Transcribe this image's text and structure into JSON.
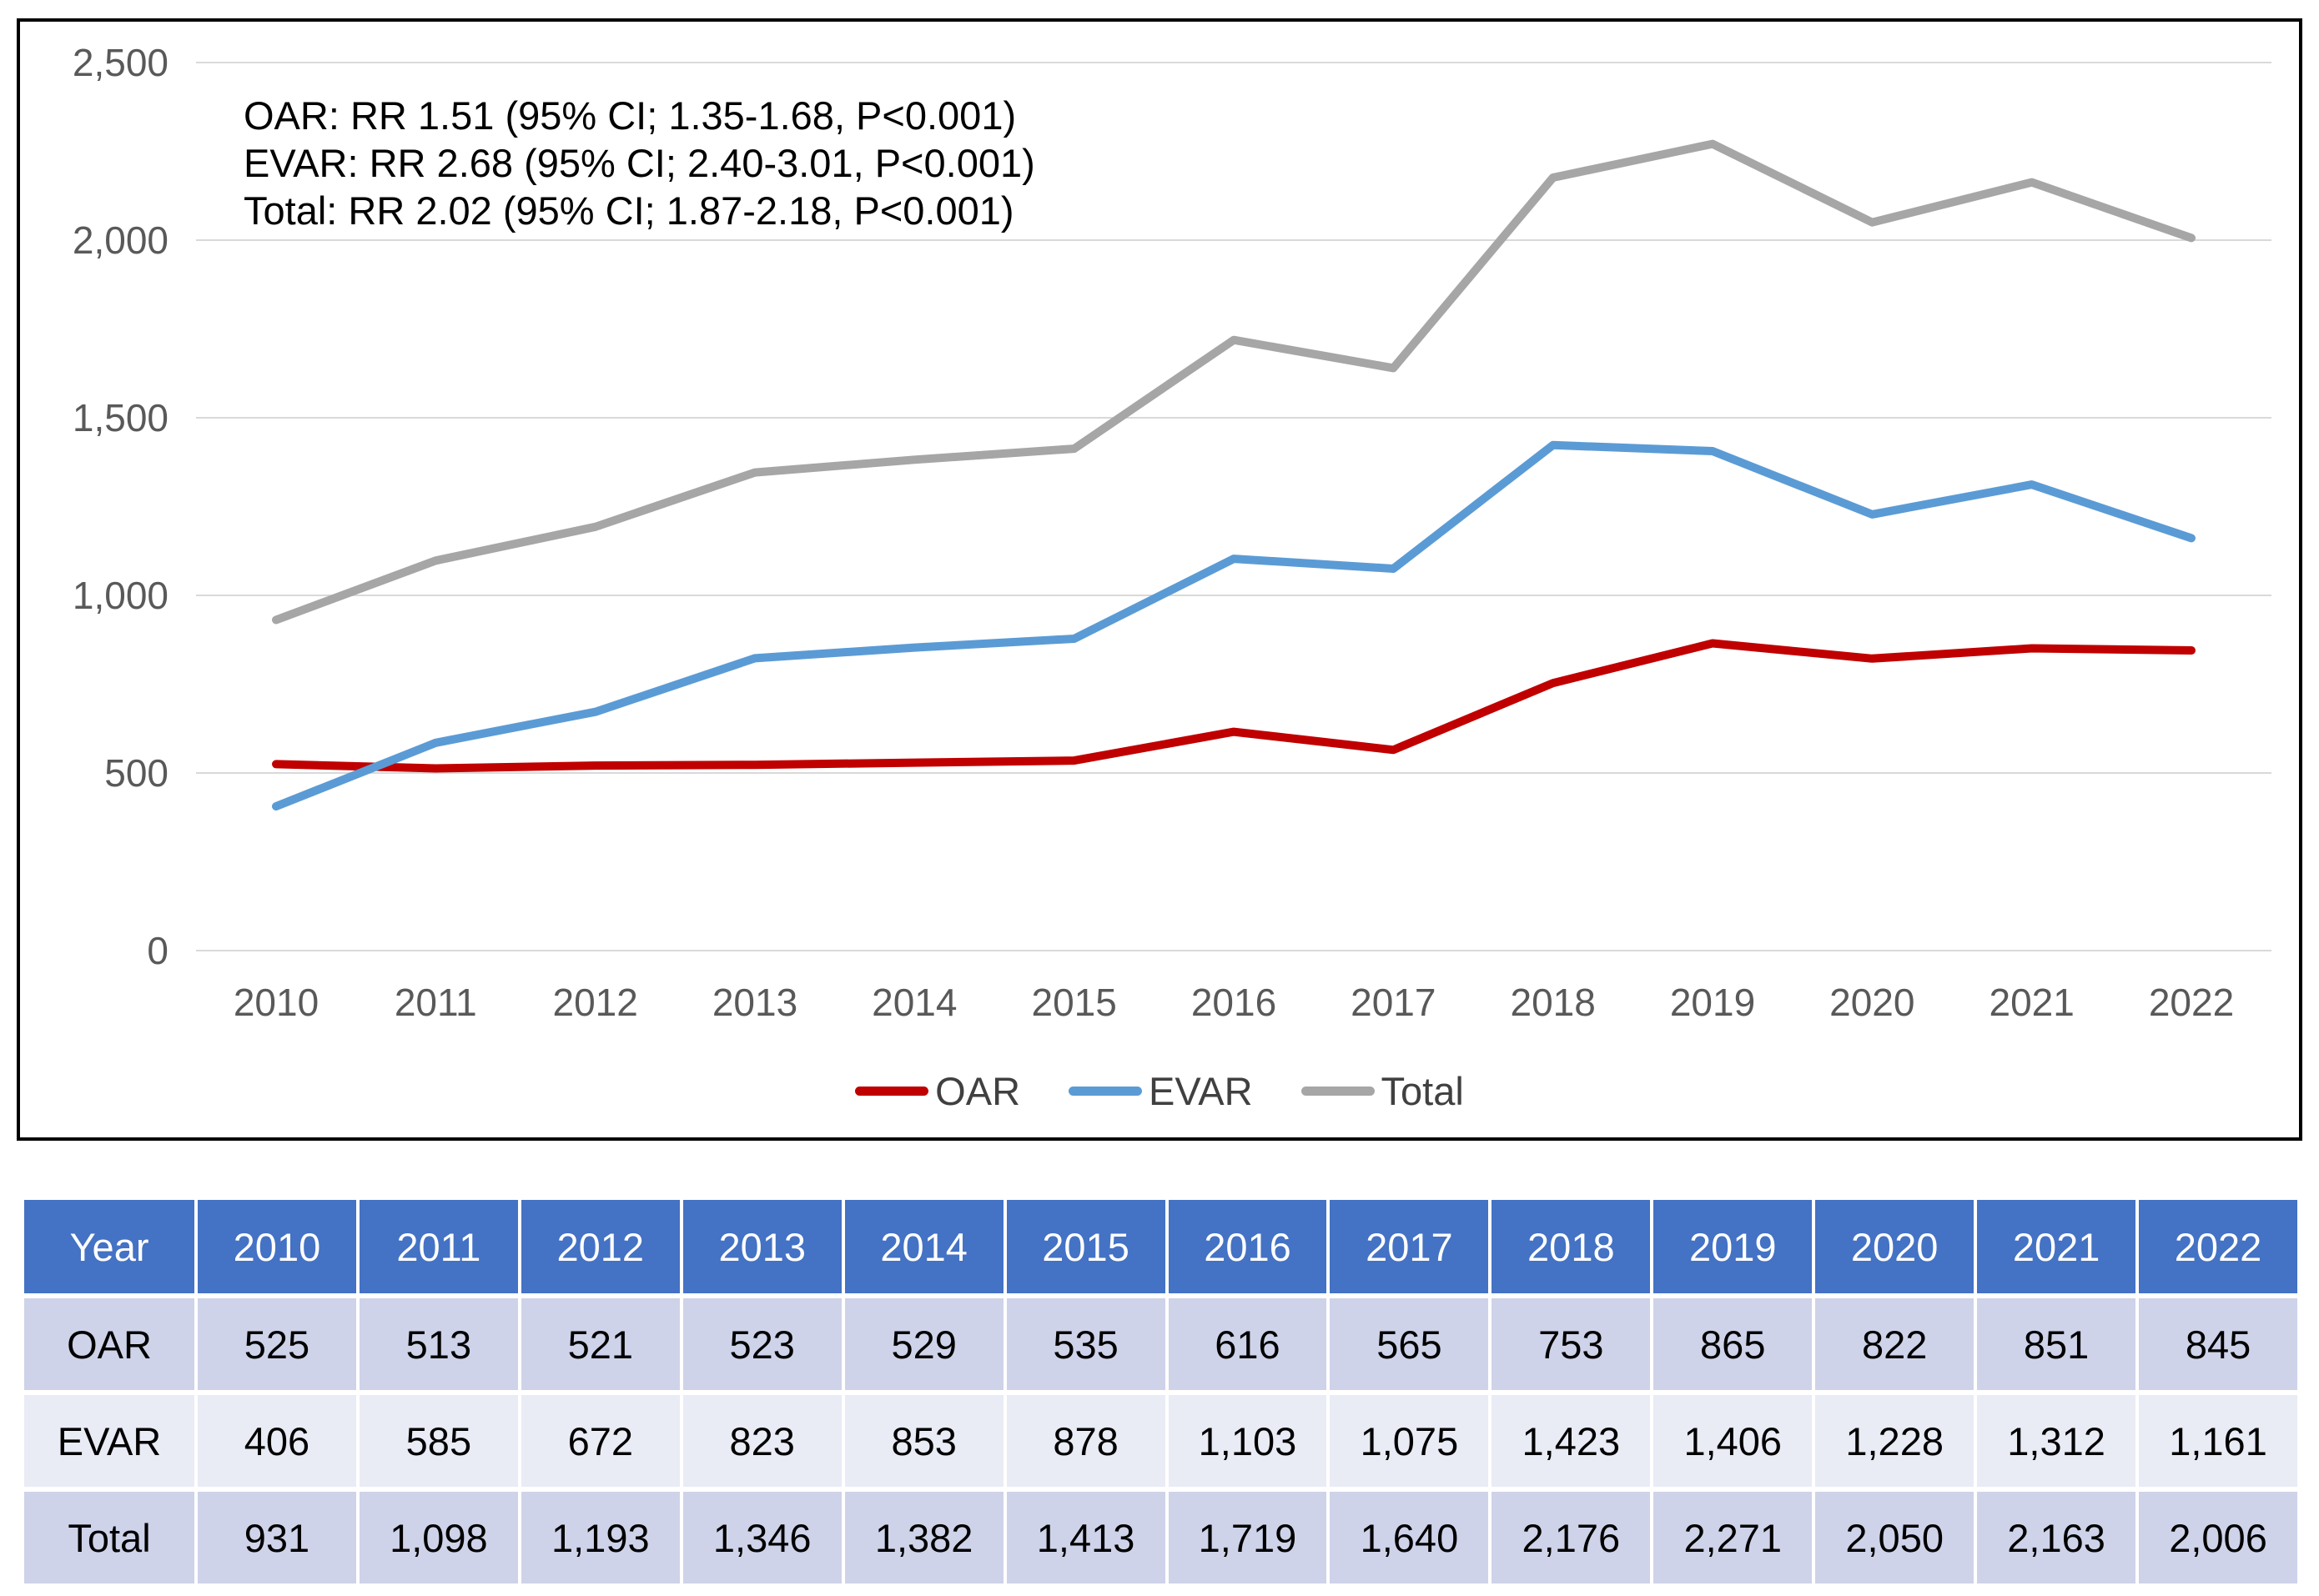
{
  "chart_data": {
    "type": "line",
    "title": "",
    "categories": [
      "2010",
      "2011",
      "2012",
      "2013",
      "2014",
      "2015",
      "2016",
      "2017",
      "2018",
      "2019",
      "2020",
      "2021",
      "2022"
    ],
    "series": [
      {
        "name": "OAR",
        "color": "#C00000",
        "values": [
          525,
          513,
          521,
          523,
          529,
          535,
          616,
          565,
          753,
          865,
          822,
          851,
          845
        ]
      },
      {
        "name": "EVAR",
        "color": "#5B9BD5",
        "values": [
          406,
          585,
          672,
          823,
          853,
          878,
          1103,
          1075,
          1423,
          1406,
          1228,
          1312,
          1161
        ]
      },
      {
        "name": "Total",
        "color": "#A6A6A6",
        "values": [
          931,
          1098,
          1193,
          1346,
          1382,
          1413,
          1719,
          1640,
          2176,
          2271,
          2050,
          2163,
          2006
        ]
      }
    ],
    "ylim": [
      0,
      2500
    ],
    "y_ticks": [
      {
        "value": 0,
        "label": "0"
      },
      {
        "value": 500,
        "label": "500"
      },
      {
        "value": 1000,
        "label": "1,000"
      },
      {
        "value": 1500,
        "label": "1,500"
      },
      {
        "value": 2000,
        "label": "2,000"
      },
      {
        "value": 2500,
        "label": "2,500"
      }
    ],
    "grid": true,
    "grid_color": "#D9D9D9",
    "axis_text_color": "#595959",
    "legend_position": "bottom",
    "annotations": [
      "OAR: RR 1.51 (95% CI; 1.35-1.68, P<0.001)",
      "EVAR: RR 2.68 (95% CI; 2.40-3.01, P<0.001)",
      "Total: RR 2.02 (95% CI; 1.87-2.18, P<0.001)"
    ]
  },
  "table": {
    "header": [
      "Year",
      "2010",
      "2011",
      "2012",
      "2013",
      "2014",
      "2015",
      "2016",
      "2017",
      "2018",
      "2019",
      "2020",
      "2021",
      "2022"
    ],
    "rows": [
      {
        "label": "OAR",
        "values": [
          "525",
          "513",
          "521",
          "523",
          "529",
          "535",
          "616",
          "565",
          "753",
          "865",
          "822",
          "851",
          "845"
        ]
      },
      {
        "label": "EVAR",
        "values": [
          "406",
          "585",
          "672",
          "823",
          "853",
          "878",
          "1,103",
          "1,075",
          "1,423",
          "1,406",
          "1,228",
          "1,312",
          "1,161"
        ]
      },
      {
        "label": "Total",
        "values": [
          "931",
          "1,098",
          "1,193",
          "1,346",
          "1,382",
          "1,413",
          "1,719",
          "1,640",
          "2,176",
          "2,271",
          "2,050",
          "2,163",
          "2,006"
        ]
      }
    ],
    "header_bg": "#4472C4",
    "header_text": "#FFFFFF",
    "band_dark": "#CED3E9",
    "band_light": "#E9EBF5"
  }
}
